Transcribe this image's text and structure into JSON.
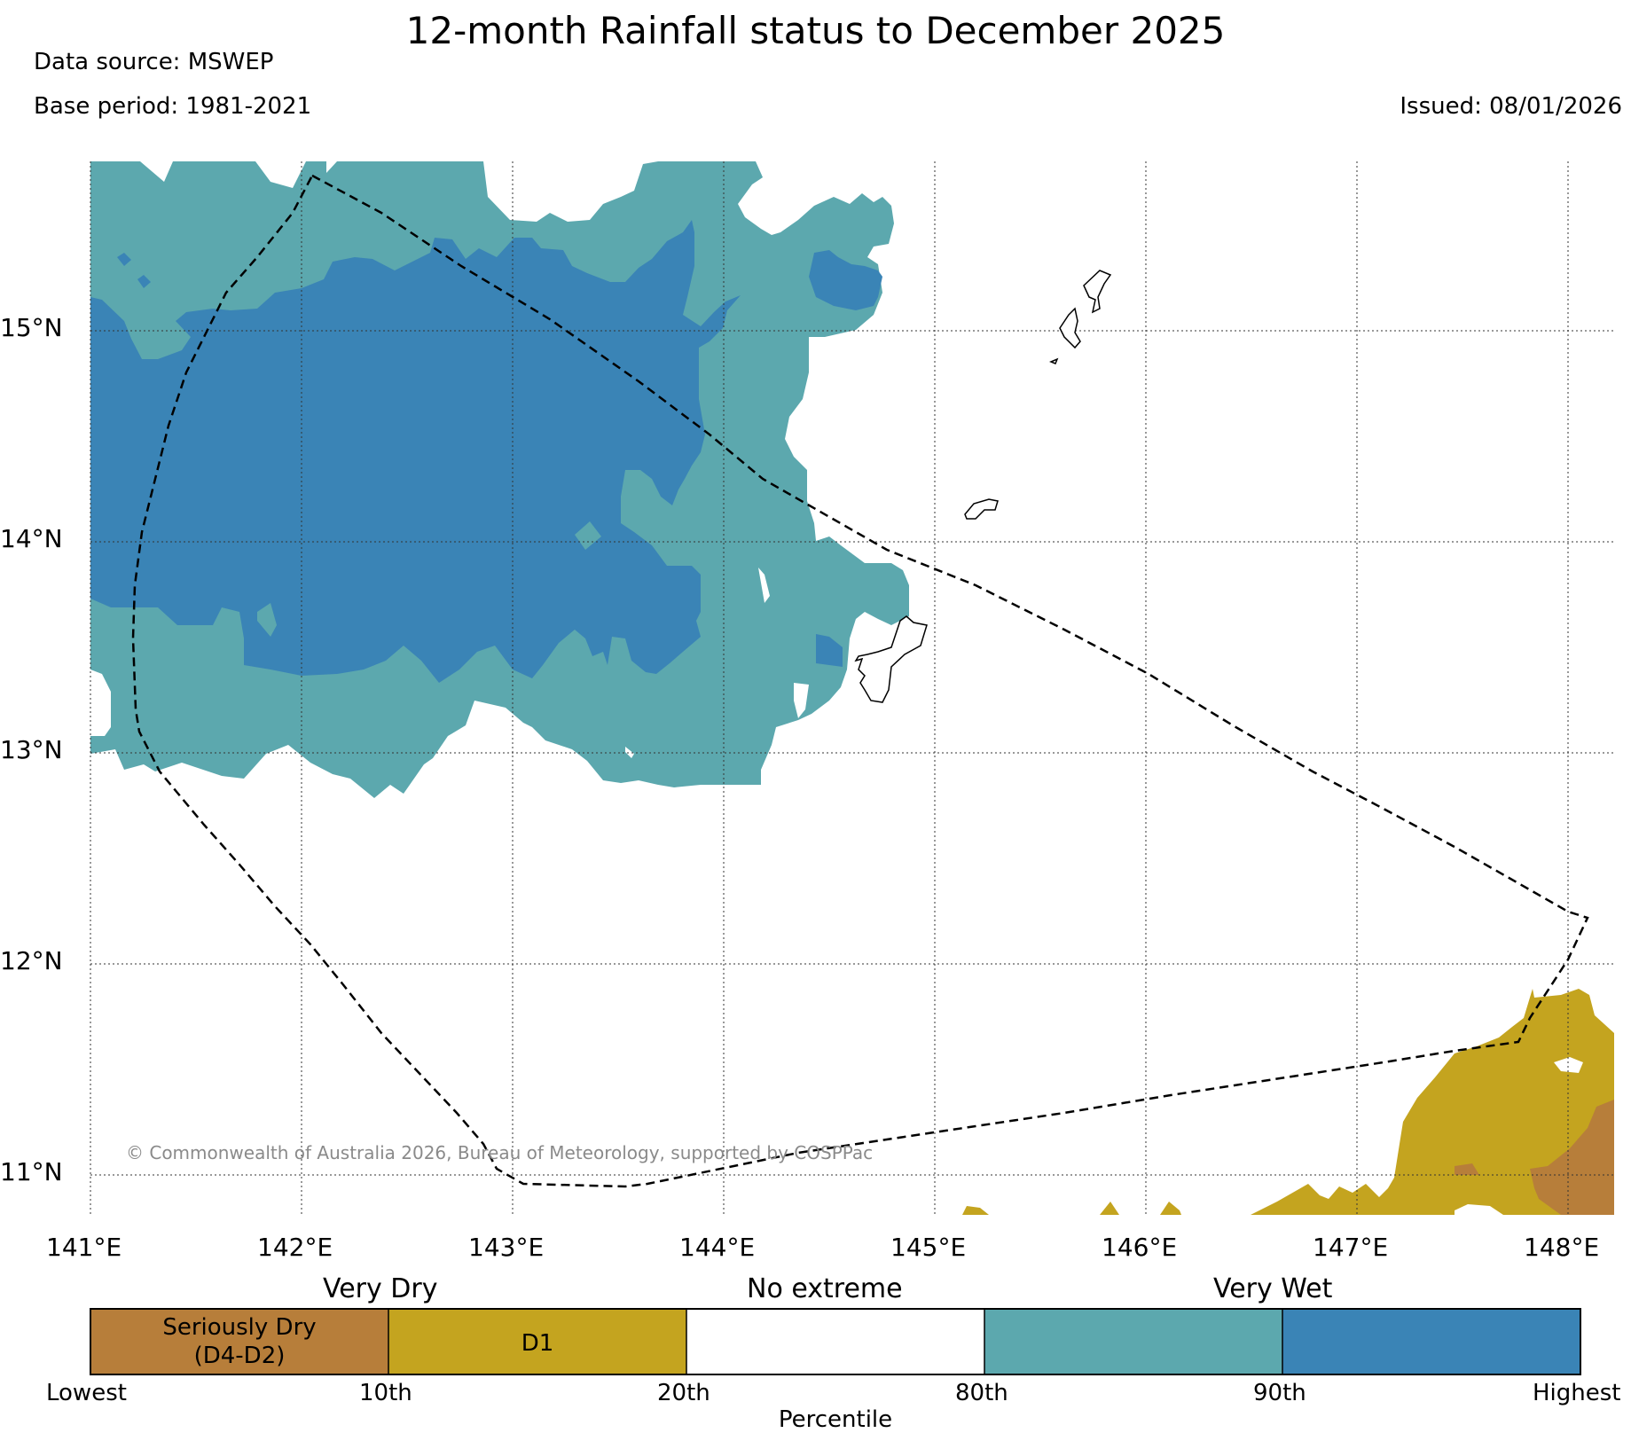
{
  "title": "12-month Rainfall status to December 2025",
  "data_source": "Data source: MSWEP",
  "base_period": "Base period: 1981-2021",
  "issued": "Issued: 08/01/2026",
  "copyright": "© Commonwealth of Australia 2026, Bureau of Meteorology, supported by COSPPac",
  "lat_labels": [
    "15°N",
    "14°N",
    "13°N",
    "12°N",
    "11°N"
  ],
  "lon_labels": [
    "141°E",
    "142°E",
    "143°E",
    "144°E",
    "145°E",
    "146°E",
    "147°E",
    "148°E"
  ],
  "legend": {
    "groups": [
      "Very Dry",
      "No extreme",
      "Very Wet"
    ],
    "categories": [
      {
        "label_line1": "Seriously Dry",
        "label_line2": "(D4-D2)",
        "color": "#b77e3a"
      },
      {
        "label_line1": "D1",
        "label_line2": "",
        "color": "#c4a41f"
      },
      {
        "label_line1": "",
        "label_line2": "",
        "color": "#ffffff"
      },
      {
        "label_line1": "",
        "label_line2": "",
        "color": "#5ca8ae"
      },
      {
        "label_line1": "",
        "label_line2": "",
        "color": "#3a84b6"
      }
    ],
    "percentiles": [
      "Lowest",
      "10th",
      "20th",
      "80th",
      "90th",
      "Highest"
    ],
    "axis_label": "Percentile"
  }
}
